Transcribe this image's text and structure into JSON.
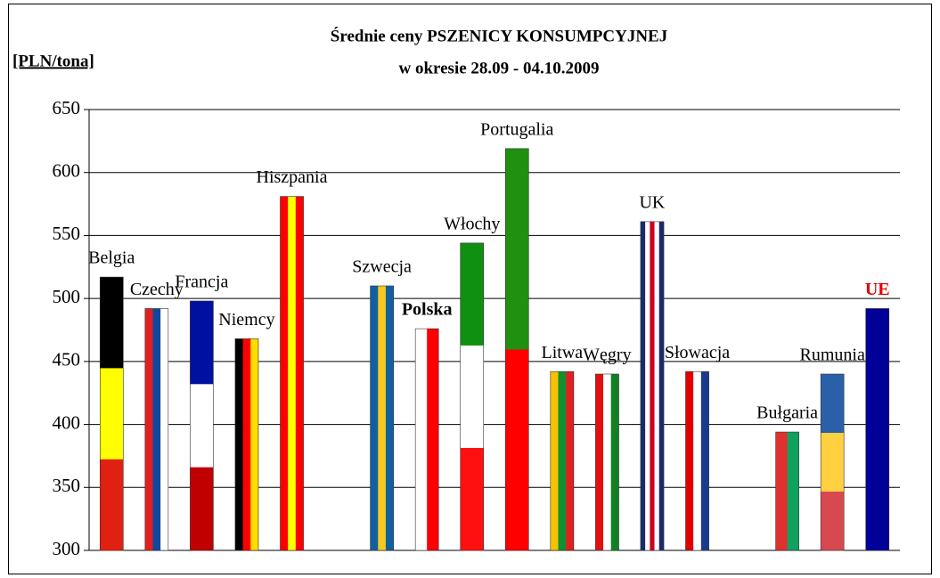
{
  "chart_data": {
    "type": "bar",
    "title": "Średnie ceny PSZENICY KONSUMPCYJNEJ",
    "subtitle": "w okresie 28.09 - 04.10.2009",
    "y_label": "[PLN/tona]",
    "categories": [
      "Belgia",
      "Czechy",
      "Francja",
      "Niemcy",
      "Hiszpania",
      null,
      "Szwecja",
      "Polska",
      "Włochy",
      "Portugalia",
      "Litwa",
      "Węgry",
      "UK",
      "Słowacja",
      null,
      "Bułgaria",
      "Rumunia",
      "UE"
    ],
    "values": [
      517,
      492,
      498,
      468,
      581,
      null,
      510,
      476,
      544,
      619,
      442,
      440,
      561,
      442,
      null,
      394,
      440,
      492
    ],
    "colors": [
      [
        "#000000",
        "#ffff00",
        "#e02010"
      ],
      [
        "#e02020",
        "#1048a0",
        "#ffffff"
      ],
      [
        "#0010a0",
        "#ffffff",
        "#c00000"
      ],
      [
        "#000000",
        "#ff0000",
        "#ffdd00"
      ],
      [
        "#ff0000",
        "#ffff00",
        "#ff0000"
      ],
      null,
      [
        "#1060a0",
        "#f8c820",
        "#1060a0"
      ],
      [
        "#ffffff",
        "#ff0000"
      ],
      [
        "#109010",
        "#ffffff",
        "#ff1010"
      ],
      [
        "#209010",
        "#ff0000"
      ],
      [
        "#f8c000",
        "#109030",
        "#e02020"
      ],
      [
        "#e01010",
        "#ffffff",
        "#108020"
      ],
      [
        "#1a2a6c",
        "#ffffff",
        "#cc0020",
        "#ffffff",
        "#1a2a6c"
      ],
      [
        "#e00000",
        "#ffffff",
        "#1a3a8c"
      ],
      null,
      [
        "#e03030",
        "#10a060"
      ],
      [
        "#2a60a8",
        "#ffd040",
        "#d84850"
      ],
      [
        "#000099"
      ]
    ],
    "stripe_direction": [
      "h",
      "v",
      "h",
      "v",
      "v",
      null,
      "v",
      "v",
      "h",
      "h",
      "v",
      "v",
      "v",
      "v",
      null,
      "v",
      "h",
      "v"
    ],
    "ylim": [
      300,
      650
    ],
    "yticks": [
      300,
      350,
      400,
      450,
      500,
      550,
      600,
      650
    ],
    "grid": true
  }
}
